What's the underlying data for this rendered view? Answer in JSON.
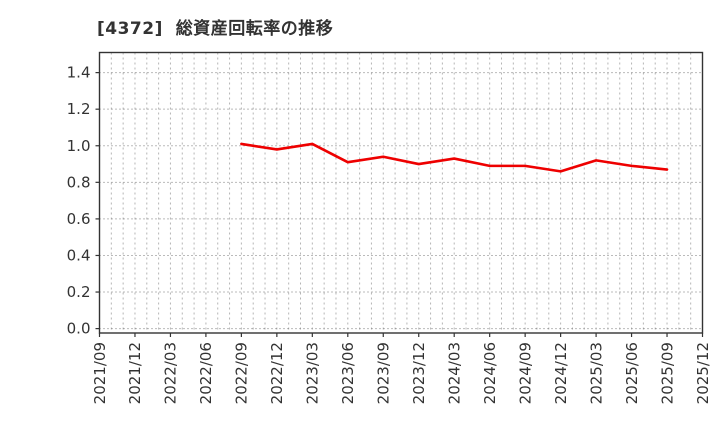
{
  "title": "[4372]  総資産回転率の推移",
  "chart_data": {
    "type": "line",
    "title": "[4372]  総資産回転率の推移",
    "x_labels": [
      "2021/09",
      "2021/12",
      "2022/03",
      "2022/06",
      "2022/09",
      "2022/12",
      "2023/03",
      "2023/06",
      "2023/09",
      "2023/12",
      "2024/03",
      "2024/06",
      "2024/09",
      "2024/12",
      "2025/03",
      "2025/06",
      "2025/09",
      "2025/12"
    ],
    "series": [
      {
        "name": "総資産回転率",
        "values": [
          null,
          null,
          null,
          null,
          1.01,
          0.98,
          1.01,
          0.91,
          0.94,
          0.9,
          0.93,
          0.89,
          0.89,
          0.86,
          0.92,
          0.89,
          0.87,
          null
        ]
      }
    ],
    "yticks": [
      0.0,
      0.2,
      0.4,
      0.6,
      0.8,
      1.0,
      1.2,
      1.4
    ],
    "ylim": [
      -0.024,
      1.51
    ],
    "grid": true,
    "legend_position": "none",
    "colors": {
      "line": "#ee0000",
      "grid_horizontal": "#777777",
      "grid_vertical": "#b5b5b5",
      "spine": "#333333",
      "tick_label": "#333333",
      "title": "#333333",
      "background": "#ffffff"
    }
  }
}
